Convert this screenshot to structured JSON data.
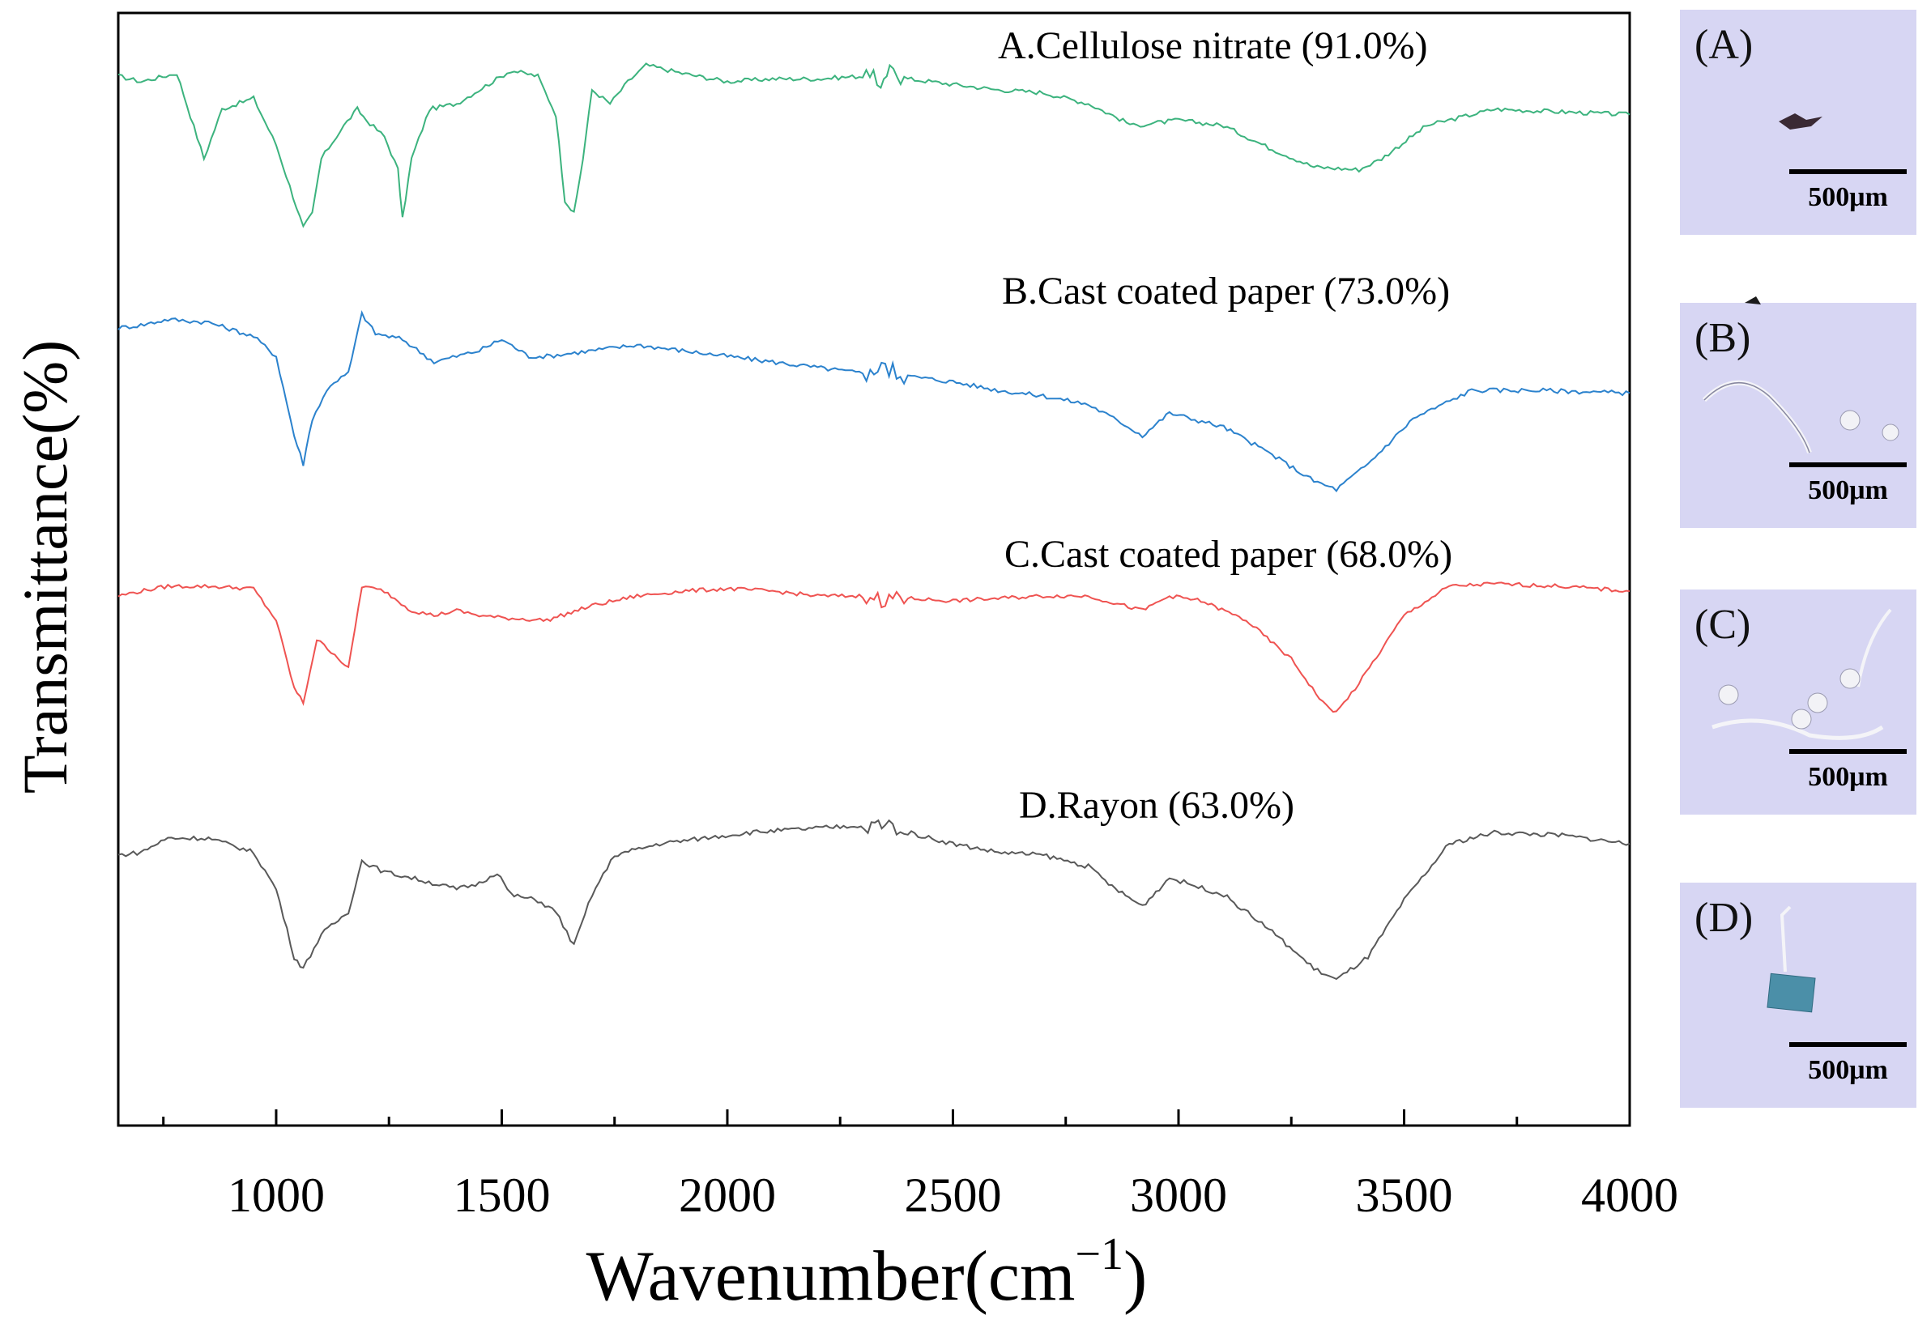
{
  "chart_data": {
    "type": "line",
    "title": "",
    "xlabel": "Wavenumber(cm",
    "xlabel_superscript": "−1",
    "xlabel_close": ")",
    "ylabel": "Transmittance(%)",
    "xlim": [
      650,
      4000
    ],
    "xticks": [
      1000,
      1500,
      2000,
      2500,
      3000,
      3500,
      4000
    ],
    "xtick_labels": [
      "1000",
      "1500",
      "2000",
      "2500",
      "3000",
      "3500",
      "4000"
    ],
    "y_units": "relative transmittance (0–100, offset stacked), each series in its own band",
    "series": [
      {
        "name": "A",
        "label": "A.Cellulose nitrate (91.0%)",
        "color": "#3cb37e",
        "points": [
          [
            650,
            90
          ],
          [
            700,
            88
          ],
          [
            780,
            91
          ],
          [
            840,
            60
          ],
          [
            880,
            78
          ],
          [
            950,
            82
          ],
          [
            1000,
            65
          ],
          [
            1060,
            35
          ],
          [
            1080,
            40
          ],
          [
            1100,
            60
          ],
          [
            1150,
            72
          ],
          [
            1180,
            78
          ],
          [
            1200,
            74
          ],
          [
            1240,
            68
          ],
          [
            1270,
            56
          ],
          [
            1280,
            38
          ],
          [
            1300,
            60
          ],
          [
            1340,
            78
          ],
          [
            1400,
            80
          ],
          [
            1480,
            88
          ],
          [
            1520,
            92
          ],
          [
            1580,
            90
          ],
          [
            1620,
            76
          ],
          [
            1640,
            45
          ],
          [
            1660,
            40
          ],
          [
            1680,
            60
          ],
          [
            1700,
            85
          ],
          [
            1740,
            80
          ],
          [
            1780,
            88
          ],
          [
            1820,
            94
          ],
          [
            1900,
            91
          ],
          [
            2000,
            88
          ],
          [
            2100,
            89
          ],
          [
            2200,
            89
          ],
          [
            2300,
            90
          ],
          [
            2340,
            88
          ],
          [
            2360,
            91
          ],
          [
            2400,
            89
          ],
          [
            2500,
            87
          ],
          [
            2600,
            85
          ],
          [
            2700,
            84
          ],
          [
            2800,
            80
          ],
          [
            2900,
            72
          ],
          [
            3000,
            74
          ],
          [
            3100,
            72
          ],
          [
            3200,
            64
          ],
          [
            3300,
            57
          ],
          [
            3400,
            56
          ],
          [
            3450,
            60
          ],
          [
            3550,
            72
          ],
          [
            3700,
            78
          ],
          [
            3850,
            77
          ],
          [
            4000,
            76
          ]
        ]
      },
      {
        "name": "B",
        "label": "B.Cast coated paper (73.0%)",
        "color": "#2b82cd",
        "points": [
          [
            650,
            90
          ],
          [
            700,
            91
          ],
          [
            760,
            93
          ],
          [
            850,
            92
          ],
          [
            950,
            87
          ],
          [
            1000,
            80
          ],
          [
            1040,
            52
          ],
          [
            1060,
            42
          ],
          [
            1080,
            58
          ],
          [
            1120,
            70
          ],
          [
            1160,
            74
          ],
          [
            1190,
            95
          ],
          [
            1220,
            88
          ],
          [
            1280,
            86
          ],
          [
            1350,
            78
          ],
          [
            1400,
            80
          ],
          [
            1450,
            82
          ],
          [
            1500,
            86
          ],
          [
            1560,
            80
          ],
          [
            1600,
            80
          ],
          [
            1700,
            82
          ],
          [
            1800,
            84
          ],
          [
            1900,
            82
          ],
          [
            2000,
            80
          ],
          [
            2100,
            78
          ],
          [
            2200,
            76
          ],
          [
            2300,
            74
          ],
          [
            2350,
            76
          ],
          [
            2400,
            73
          ],
          [
            2500,
            71
          ],
          [
            2600,
            68
          ],
          [
            2700,
            66
          ],
          [
            2800,
            63
          ],
          [
            2880,
            56
          ],
          [
            2920,
            52
          ],
          [
            2980,
            60
          ],
          [
            3100,
            55
          ],
          [
            3200,
            46
          ],
          [
            3300,
            36
          ],
          [
            3350,
            33
          ],
          [
            3420,
            42
          ],
          [
            3520,
            58
          ],
          [
            3650,
            68
          ],
          [
            3800,
            68
          ],
          [
            4000,
            67
          ]
        ]
      },
      {
        "name": "C",
        "label": "C.Cast coated paper (68.0%)",
        "color": "#ef5351",
        "points": [
          [
            650,
            88
          ],
          [
            700,
            90
          ],
          [
            760,
            92
          ],
          [
            850,
            92
          ],
          [
            950,
            91
          ],
          [
            1000,
            78
          ],
          [
            1040,
            50
          ],
          [
            1060,
            44
          ],
          [
            1090,
            70
          ],
          [
            1130,
            64
          ],
          [
            1160,
            58
          ],
          [
            1190,
            92
          ],
          [
            1240,
            90
          ],
          [
            1300,
            82
          ],
          [
            1350,
            80
          ],
          [
            1400,
            82
          ],
          [
            1450,
            80
          ],
          [
            1500,
            79
          ],
          [
            1600,
            78
          ],
          [
            1700,
            84
          ],
          [
            1800,
            88
          ],
          [
            1900,
            90
          ],
          [
            2000,
            91
          ],
          [
            2100,
            90
          ],
          [
            2200,
            88
          ],
          [
            2300,
            88
          ],
          [
            2350,
            86
          ],
          [
            2400,
            87
          ],
          [
            2500,
            86
          ],
          [
            2600,
            87
          ],
          [
            2700,
            88
          ],
          [
            2800,
            88
          ],
          [
            2880,
            84
          ],
          [
            2920,
            82
          ],
          [
            2980,
            88
          ],
          [
            3050,
            86
          ],
          [
            3150,
            78
          ],
          [
            3250,
            62
          ],
          [
            3320,
            44
          ],
          [
            3350,
            40
          ],
          [
            3400,
            52
          ],
          [
            3500,
            80
          ],
          [
            3600,
            92
          ],
          [
            3700,
            93
          ],
          [
            3850,
            92
          ],
          [
            4000,
            90
          ]
        ]
      },
      {
        "name": "D",
        "label": "D.Rayon (63.0%)",
        "color": "#595959",
        "points": [
          [
            650,
            84
          ],
          [
            700,
            85
          ],
          [
            760,
            90
          ],
          [
            850,
            90
          ],
          [
            950,
            85
          ],
          [
            1000,
            72
          ],
          [
            1040,
            48
          ],
          [
            1060,
            44
          ],
          [
            1100,
            56
          ],
          [
            1160,
            64
          ],
          [
            1190,
            82
          ],
          [
            1240,
            78
          ],
          [
            1300,
            76
          ],
          [
            1400,
            72
          ],
          [
            1450,
            74
          ],
          [
            1490,
            78
          ],
          [
            1520,
            70
          ],
          [
            1580,
            68
          ],
          [
            1620,
            64
          ],
          [
            1660,
            52
          ],
          [
            1700,
            70
          ],
          [
            1750,
            84
          ],
          [
            1850,
            88
          ],
          [
            1950,
            90
          ],
          [
            2050,
            92
          ],
          [
            2150,
            93
          ],
          [
            2250,
            94
          ],
          [
            2350,
            95
          ],
          [
            2400,
            92
          ],
          [
            2500,
            88
          ],
          [
            2600,
            85
          ],
          [
            2700,
            84
          ],
          [
            2800,
            80
          ],
          [
            2860,
            72
          ],
          [
            2920,
            66
          ],
          [
            2980,
            76
          ],
          [
            3100,
            70
          ],
          [
            3200,
            58
          ],
          [
            3300,
            44
          ],
          [
            3350,
            40
          ],
          [
            3420,
            48
          ],
          [
            3500,
            68
          ],
          [
            3600,
            88
          ],
          [
            3700,
            92
          ],
          [
            3850,
            91
          ],
          [
            4000,
            88
          ]
        ]
      }
    ]
  },
  "insets": [
    {
      "letter": "(A)",
      "scale": "500μm"
    },
    {
      "letter": "(B)",
      "scale": "500μm"
    },
    {
      "letter": "(C)",
      "scale": "500μm"
    },
    {
      "letter": "(D)",
      "scale": "500μm"
    }
  ],
  "colors": {
    "inset_background": "#d7d6f3",
    "axis": "#000000"
  }
}
